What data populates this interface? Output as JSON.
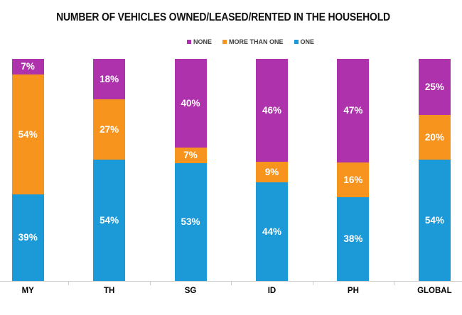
{
  "chart_data": {
    "type": "bar",
    "stacked": true,
    "title": "NUMBER OF VEHICLES OWNED/LEASED/RENTED IN THE HOUSEHOLD",
    "categories": [
      "MY",
      "TH",
      "SG",
      "ID",
      "PH",
      "GLOBAL"
    ],
    "series": [
      {
        "name": "NONE",
        "color": "#AE32AC",
        "values": [
          7,
          18,
          40,
          46,
          47,
          25
        ]
      },
      {
        "name": "MORE THAN ONE",
        "color": "#F7941E",
        "values": [
          54,
          27,
          7,
          9,
          16,
          20
        ]
      },
      {
        "name": "ONE",
        "color": "#1C9AD7",
        "values": [
          39,
          54,
          53,
          44,
          38,
          54
        ]
      }
    ],
    "value_suffix": "%",
    "legend_position": "top",
    "grid": false,
    "axis_color": "#CDCDCD",
    "value_label_color": "#FFFFFF"
  }
}
